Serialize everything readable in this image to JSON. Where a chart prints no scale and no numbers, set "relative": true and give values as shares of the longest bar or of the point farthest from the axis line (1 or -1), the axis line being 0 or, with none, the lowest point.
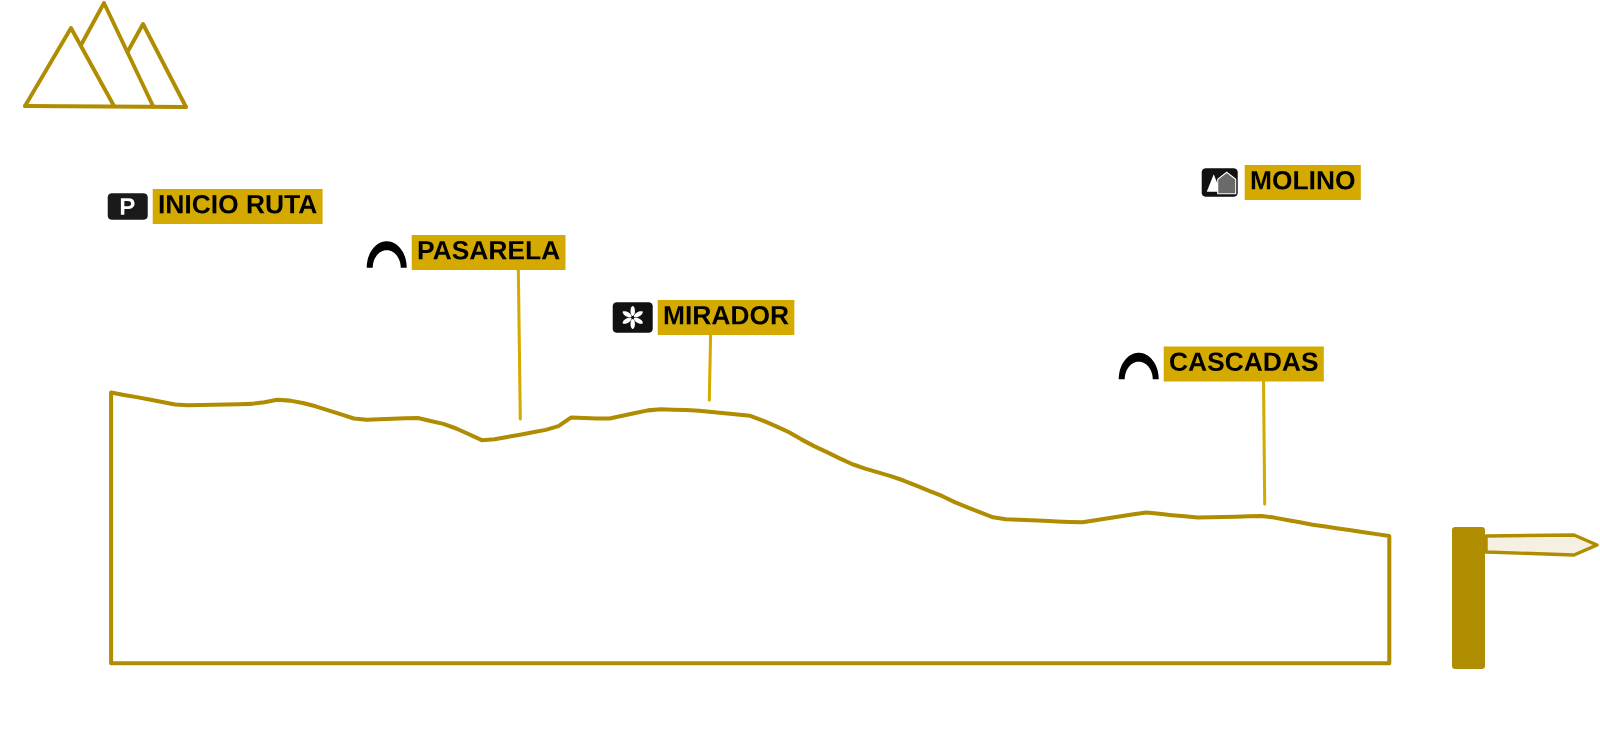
{
  "chart_data": {
    "type": "area",
    "relative": true,
    "categories": [
      null,
      null,
      null,
      null,
      null,
      null,
      null,
      null,
      null,
      null,
      null,
      null,
      null,
      null,
      null,
      null,
      null,
      null,
      null,
      null,
      null,
      null,
      null,
      null,
      null,
      null,
      null,
      null,
      null,
      null,
      null,
      null,
      null,
      null,
      null,
      null,
      null,
      null,
      null,
      null,
      null,
      null,
      null,
      null,
      null,
      null,
      null,
      null,
      null,
      null,
      null,
      null,
      null,
      null,
      null,
      null,
      null,
      null,
      null,
      null,
      null,
      null,
      null,
      null,
      null,
      null,
      null,
      null,
      null,
      null,
      null,
      null,
      null,
      null,
      null,
      null,
      null,
      null,
      null,
      null,
      null,
      null,
      null,
      null,
      null,
      null,
      null,
      null,
      null,
      null,
      null,
      null,
      null,
      null,
      null,
      null,
      null,
      null,
      null,
      null,
      null
    ],
    "series": [
      {
        "color": "#b08c00",
        "values": [
          1,
          0.991,
          0.983,
          0.974,
          0.965,
          0.956,
          0.953,
          0.954,
          0.955,
          0.956,
          0.957,
          0.958,
          0.964,
          0.973,
          0.97,
          0.961,
          0.949,
          0.934,
          0.919,
          0.904,
          0.899,
          0.901,
          0.903,
          0.905,
          0.906,
          0.895,
          0.884,
          0.867,
          0.846,
          0.824,
          0.827,
          0.836,
          0.844,
          0.853,
          0.862,
          0.876,
          0.908,
          0.906,
          0.904,
          0.904,
          0.914,
          0.924,
          0.934,
          0.938,
          0.936,
          0.935,
          0.933,
          0.928,
          0.923,
          0.919,
          0.914,
          0.896,
          0.876,
          0.854,
          0.827,
          0.802,
          0.78,
          0.757,
          0.735,
          0.719,
          0.705,
          0.691,
          0.675,
          0.656,
          0.637,
          0.618,
          0.595,
          0.576,
          0.557,
          0.539,
          0.532,
          0.53,
          0.528,
          0.526,
          0.524,
          0.522,
          0.521,
          0.528,
          0.536,
          0.543,
          0.55,
          0.557,
          0.552,
          0.547,
          0.543,
          0.538,
          0.539,
          0.54,
          0.541,
          0.543,
          0.544,
          0.538,
          0.529,
          0.521,
          0.512,
          0.505,
          0.498,
          0.491,
          0.484,
          0.477,
          0.47
        ]
      }
    ],
    "annotations": [
      "INICIO RUTA",
      "PASARELA",
      "MIRADOR",
      "CASCADAS",
      "MOLINO"
    ]
  }
}
